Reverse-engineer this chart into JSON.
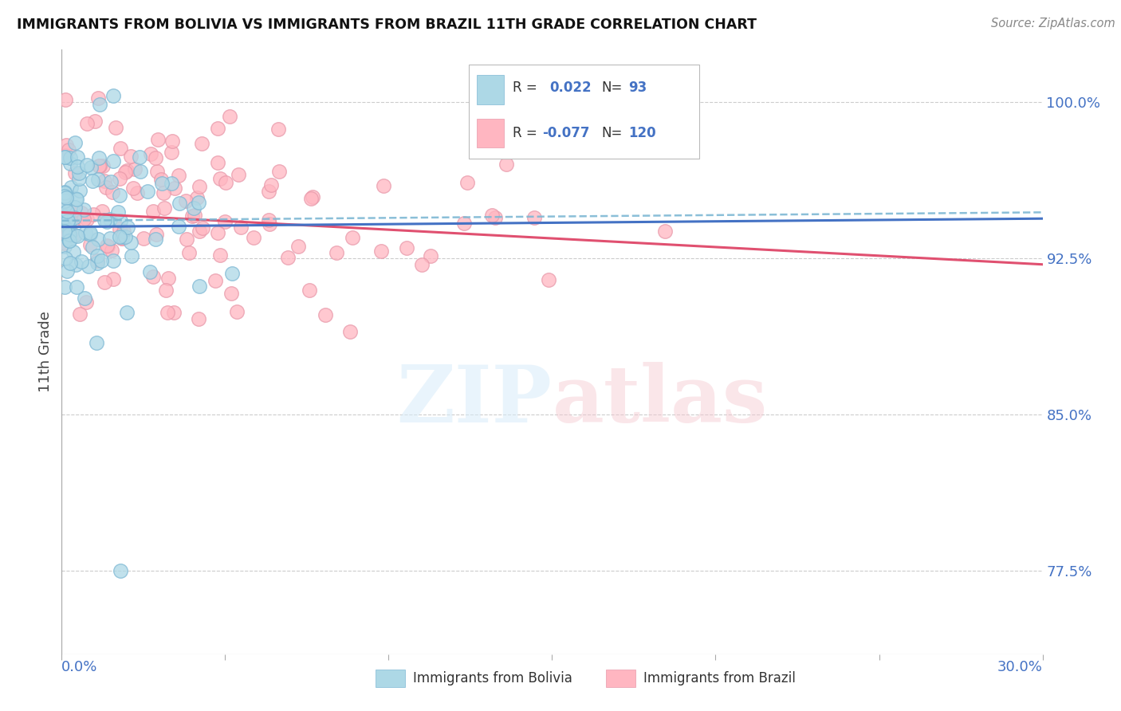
{
  "title": "IMMIGRANTS FROM BOLIVIA VS IMMIGRANTS FROM BRAZIL 11TH GRADE CORRELATION CHART",
  "source": "Source: ZipAtlas.com",
  "ylabel": "11th Grade",
  "ylabel_ticks": [
    "77.5%",
    "85.0%",
    "92.5%",
    "100.0%"
  ],
  "ylabel_values": [
    0.775,
    0.85,
    0.925,
    1.0
  ],
  "xlim": [
    0.0,
    0.3
  ],
  "ylim": [
    0.735,
    1.025
  ],
  "bolivia_R": 0.022,
  "bolivia_N": 93,
  "brazil_R": -0.077,
  "brazil_N": 120,
  "bolivia_color": "#ADD8E6",
  "brazil_color": "#FFB6C1",
  "bolivia_edge": "#7EB8D4",
  "brazil_edge": "#E899AA",
  "bolivia_line_color": "#4472C4",
  "brazil_line_color": "#E05070",
  "bolivia_dashed_color": "#7EB8D4",
  "watermark_zip": "ZIP",
  "watermark_atlas": "atlas",
  "legend_label_bolivia": "Immigrants from Bolivia",
  "legend_label_brazil": "Immigrants from Brazil",
  "grid_color": "#CCCCCC",
  "spine_color": "#AAAAAA"
}
